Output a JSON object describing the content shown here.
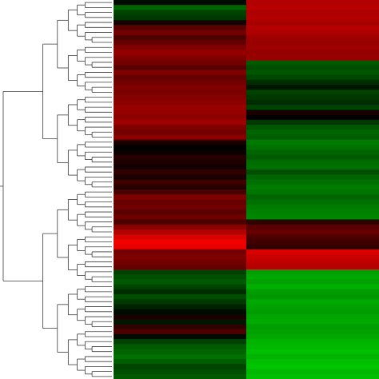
{
  "chart_data": {
    "type": "heatmap",
    "title": "",
    "xlabel": "",
    "ylabel": "",
    "colorscale": {
      "low": "#00e000",
      "mid": "#000000",
      "high": "#ff0000"
    },
    "value_range": [
      -1,
      1
    ],
    "columns": [
      "",
      ""
    ],
    "dendrogram": "rows",
    "tick_labels_shown": false,
    "rows": [
      {
        "values": [
          -0.05,
          0.7
        ]
      },
      {
        "values": [
          -0.45,
          0.72
        ]
      },
      {
        "values": [
          -0.3,
          0.68
        ]
      },
      {
        "values": [
          -0.25,
          0.7
        ]
      },
      {
        "values": [
          0.1,
          0.65
        ]
      },
      {
        "values": [
          0.35,
          0.7
        ]
      },
      {
        "values": [
          0.45,
          0.68
        ]
      },
      {
        "values": [
          0.3,
          0.62
        ]
      },
      {
        "values": [
          0.4,
          0.6
        ]
      },
      {
        "values": [
          0.5,
          0.62
        ]
      },
      {
        "values": [
          0.58,
          0.58
        ]
      },
      {
        "values": [
          0.5,
          0.6
        ]
      },
      {
        "values": [
          0.45,
          -0.4
        ]
      },
      {
        "values": [
          0.35,
          -0.35
        ]
      },
      {
        "values": [
          0.5,
          -0.38
        ]
      },
      {
        "values": [
          0.4,
          -0.32
        ]
      },
      {
        "values": [
          0.45,
          -0.2
        ]
      },
      {
        "values": [
          0.5,
          -0.1
        ]
      },
      {
        "values": [
          0.48,
          -0.3
        ]
      },
      {
        "values": [
          0.52,
          -0.25
        ]
      },
      {
        "values": [
          0.55,
          -0.2
        ]
      },
      {
        "values": [
          0.6,
          -0.3
        ]
      },
      {
        "values": [
          0.58,
          0.1
        ]
      },
      {
        "values": [
          0.55,
          0.0
        ]
      },
      {
        "values": [
          0.62,
          -0.25
        ]
      },
      {
        "values": [
          0.5,
          -0.38
        ]
      },
      {
        "values": [
          0.45,
          -0.45
        ]
      },
      {
        "values": [
          0.55,
          -0.42
        ]
      },
      {
        "values": [
          0.1,
          -0.55
        ]
      },
      {
        "values": [
          0.0,
          -0.5
        ]
      },
      {
        "values": [
          0.05,
          -0.45
        ]
      },
      {
        "values": [
          0.15,
          -0.4
        ]
      },
      {
        "values": [
          0.12,
          -0.48
        ]
      },
      {
        "values": [
          0.08,
          -0.5
        ]
      },
      {
        "values": [
          0.2,
          -0.35
        ]
      },
      {
        "values": [
          0.1,
          -0.45
        ]
      },
      {
        "values": [
          0.25,
          -0.5
        ]
      },
      {
        "values": [
          0.15,
          -0.55
        ]
      },
      {
        "values": [
          0.3,
          -0.52
        ]
      },
      {
        "values": [
          0.5,
          -0.45
        ]
      },
      {
        "values": [
          0.4,
          -0.5
        ]
      },
      {
        "values": [
          0.45,
          -0.55
        ]
      },
      {
        "values": [
          0.35,
          -0.58
        ]
      },
      {
        "values": [
          0.42,
          -0.6
        ]
      },
      {
        "values": [
          0.3,
          0.2
        ]
      },
      {
        "values": [
          0.55,
          0.35
        ]
      },
      {
        "values": [
          0.7,
          0.4
        ]
      },
      {
        "values": [
          0.85,
          0.3
        ]
      },
      {
        "values": [
          0.95,
          0.25
        ]
      },
      {
        "values": [
          0.9,
          0.2
        ]
      },
      {
        "values": [
          0.45,
          0.85
        ]
      },
      {
        "values": [
          0.5,
          0.8
        ]
      },
      {
        "values": [
          0.45,
          0.75
        ]
      },
      {
        "values": [
          0.4,
          0.7
        ]
      },
      {
        "values": [
          -0.3,
          -0.7
        ]
      },
      {
        "values": [
          -0.35,
          -0.75
        ]
      },
      {
        "values": [
          -0.4,
          -0.72
        ]
      },
      {
        "values": [
          -0.3,
          -0.78
        ]
      },
      {
        "values": [
          -0.2,
          -0.7
        ]
      },
      {
        "values": [
          -0.35,
          -0.68
        ]
      },
      {
        "values": [
          -0.25,
          -0.75
        ]
      },
      {
        "values": [
          -0.15,
          -0.72
        ]
      },
      {
        "values": [
          -0.05,
          -0.7
        ]
      },
      {
        "values": [
          0.1,
          -0.74
        ]
      },
      {
        "values": [
          -0.1,
          -0.76
        ]
      },
      {
        "values": [
          0.2,
          -0.7
        ]
      },
      {
        "values": [
          0.3,
          -0.72
        ]
      },
      {
        "values": [
          -0.05,
          -0.75
        ]
      },
      {
        "values": [
          -0.3,
          -0.8
        ]
      },
      {
        "values": [
          -0.4,
          -0.82
        ]
      },
      {
        "values": [
          -0.45,
          -0.85
        ]
      },
      {
        "values": [
          -0.5,
          -0.8
        ]
      },
      {
        "values": [
          -0.4,
          -0.85
        ]
      },
      {
        "values": [
          -0.3,
          -0.88
        ]
      },
      {
        "values": [
          -0.35,
          -0.82
        ]
      },
      {
        "values": [
          -0.4,
          -0.85
        ]
      }
    ]
  }
}
